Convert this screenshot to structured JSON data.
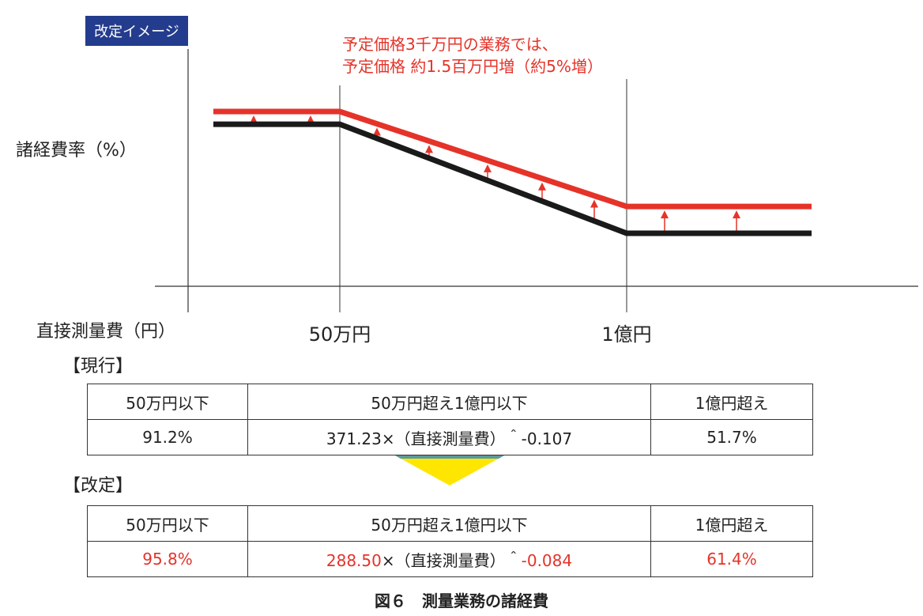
{
  "badge": "改定イメージ",
  "annotation": {
    "line1": "予定価格3千万円の業務では、",
    "line2": "予定価格 約1.5百万円増（約5%増）"
  },
  "colors": {
    "revised": "#e53329",
    "current": "#1a1a1a",
    "badge_bg": "#233c8e",
    "arrow": "#ffe600"
  },
  "chart_data": {
    "type": "line",
    "title": "",
    "xlabel": "直接測量費（円）",
    "ylabel": "諸経費率（%）",
    "x_ticks": [
      "50万円",
      "1億円"
    ],
    "series": [
      {
        "role": "revised",
        "points": [
          {
            "x": "min",
            "y": 95.8
          },
          {
            "x": "50万円",
            "y": 95.8
          },
          {
            "x": "1億円",
            "y": 61.4
          },
          {
            "x": "max",
            "y": 61.4
          }
        ]
      },
      {
        "role": "current",
        "points": [
          {
            "x": "min",
            "y": 91.2
          },
          {
            "x": "50万円",
            "y": 91.2
          },
          {
            "x": "1億円",
            "y": 51.7
          },
          {
            "x": "max",
            "y": 51.7
          }
        ]
      }
    ],
    "increase_arrows": 9
  },
  "current_section": {
    "label": "【現行】",
    "headers": [
      "50万円以下",
      "50万円超え1億円以下",
      "1億円超え"
    ],
    "values": [
      "91.2%",
      "371.23×（直接測量費）＾-0.107",
      "51.7%"
    ]
  },
  "revised_section": {
    "label": "【改定】",
    "headers": [
      "50万円以下",
      "50万円超え1億円以下",
      "1億円超え"
    ],
    "values": [
      "95.8%",
      "288.50×（直接測量費）＾-0.084",
      "61.4%"
    ],
    "values_highlight": [
      "95.8%",
      "288.50",
      "-0.084",
      "61.4%"
    ],
    "formula_parts": [
      "288.50",
      "×（直接測量費）＾",
      "-0.084"
    ]
  },
  "caption": "図６　測量業務の諸経費"
}
